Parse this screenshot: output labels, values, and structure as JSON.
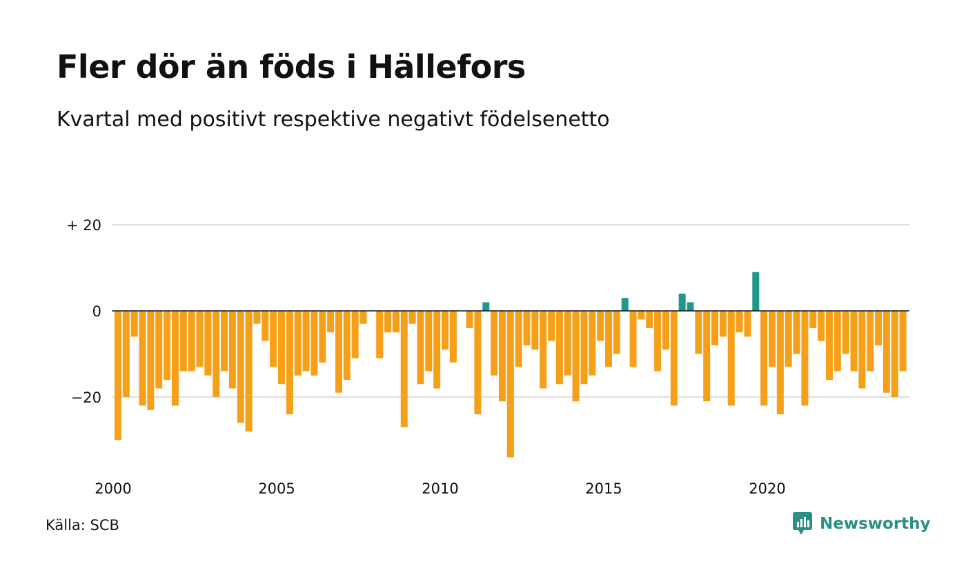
{
  "title": "Fler dör än föds i Hällefors",
  "subtitle": "Kvartal med positivt respektive negativt födelsenetto",
  "source": "Källa: SCB",
  "brand": {
    "name": "Newsworthy",
    "icon": "newsworthy-logo-icon"
  },
  "colors": {
    "positive": "#1f9a8a",
    "negative": "#f6a01a",
    "grid": "#dddddd",
    "zero_line": "#111111"
  },
  "chart_data": {
    "type": "bar",
    "ylim": [
      -38,
      30
    ],
    "y_ticks": [
      {
        "value": 20,
        "label": "+ 20"
      },
      {
        "value": 0,
        "label": "0"
      },
      {
        "value": -20,
        "label": "−20"
      }
    ],
    "x_ticks": [
      {
        "label": "2000",
        "quarter_index": 0
      },
      {
        "label": "2005",
        "quarter_index": 20
      },
      {
        "label": "2010",
        "quarter_index": 40
      },
      {
        "label": "2015",
        "quarter_index": 60
      },
      {
        "label": "2020",
        "quarter_index": 80
      }
    ],
    "start_year": 2000,
    "quarters_per_year": 4,
    "grid": true,
    "values": [
      -30,
      -20,
      -6,
      -22,
      -23,
      -18,
      -16,
      -22,
      -14,
      -14,
      -13,
      -15,
      -20,
      -14,
      -18,
      -26,
      -28,
      -3,
      -7,
      -13,
      -17,
      -24,
      -15,
      -14,
      -15,
      -12,
      -5,
      -19,
      -16,
      -11,
      -3,
      0,
      -11,
      -5,
      -5,
      -27,
      -3,
      -17,
      -14,
      -18,
      -9,
      -12,
      0,
      -4,
      -24,
      2,
      -15,
      -21,
      -34,
      -13,
      -8,
      -9,
      -18,
      -7,
      -17,
      -15,
      -21,
      -17,
      -15,
      -7,
      -13,
      -10,
      3,
      -13,
      -2,
      -4,
      -14,
      -9,
      -22,
      4,
      2,
      -10,
      -21,
      -8,
      -6,
      -22,
      -5,
      -6,
      9,
      -22,
      -13,
      -24,
      -13,
      -10,
      -22,
      -4,
      -7,
      -16,
      -14,
      -10,
      -14,
      -18,
      -14,
      -8,
      -19,
      -20,
      -14
    ]
  }
}
